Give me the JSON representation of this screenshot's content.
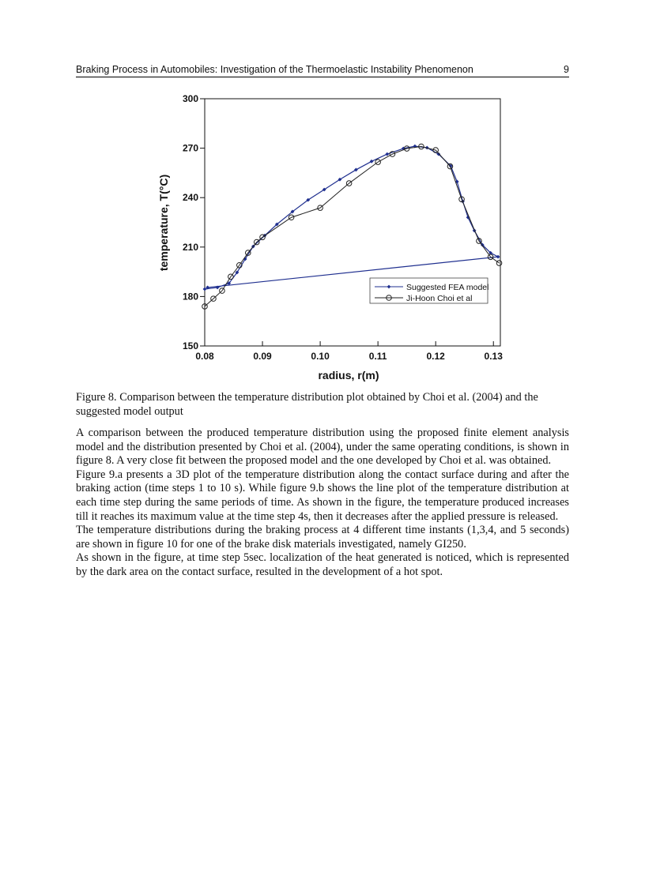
{
  "header": {
    "title": "Braking Process in Automobiles: Investigation of the Thermoelastic Instability Phenomenon",
    "page_number": "9"
  },
  "chart_data": {
    "type": "line",
    "xlabel": "radius, r(m)",
    "ylabel": "temperature, T(°C)",
    "xlim": [
      0.08,
      0.1312
    ],
    "ylim": [
      150,
      300
    ],
    "xticks": [
      0.08,
      0.09,
      {
        "value": 0.1,
        "label": "0.10"
      },
      0.11,
      0.12,
      0.13
    ],
    "yticks": [
      150,
      180,
      210,
      240,
      270,
      300
    ],
    "legend": "lower right",
    "series": [
      {
        "name": "Suggested FEA model",
        "color": "#1f2f8f",
        "marker": "diamond",
        "x": [
          0.08,
          0.0822,
          0.0842,
          0.0856,
          0.087,
          0.0884,
          0.0904,
          0.0925,
          0.0952,
          0.0979,
          0.1007,
          0.1034,
          0.1062,
          0.1089,
          0.1116,
          0.1144,
          0.1164,
          0.1185,
          0.1205,
          0.1226,
          0.1237,
          0.1247,
          0.1256,
          0.1267,
          0.1281,
          0.1295,
          0.1308,
          0.0805
        ],
        "values": [
          184.5,
          185.5,
          188,
          194.6,
          202.7,
          210.4,
          217,
          223.8,
          231.5,
          238.6,
          244.9,
          251,
          256.9,
          262,
          266.4,
          269.8,
          271.2,
          270.3,
          266.4,
          259.2,
          249.7,
          237.7,
          228,
          220,
          211.3,
          206.5,
          204.1,
          185.5
        ]
      },
      {
        "name": "Ji-Hoon Choi et al",
        "color": "#222222",
        "marker": "circle",
        "x": [
          0.08,
          0.0815,
          0.083,
          0.0845,
          0.086,
          0.0875,
          0.089,
          0.09,
          0.095,
          0.1,
          0.105,
          0.11,
          0.1125,
          0.115,
          0.1175,
          0.12,
          0.1225,
          0.1245,
          0.1275,
          0.1295,
          0.131
        ],
        "values": [
          174,
          178.7,
          183.5,
          192,
          199,
          206.5,
          213,
          216,
          228,
          233.8,
          248.7,
          261.6,
          266.4,
          269.8,
          271,
          268.8,
          259,
          239,
          213.7,
          204,
          200.3
        ]
      }
    ]
  },
  "caption": "Figure 8. Comparison between the temperature distribution plot obtained by Choi et al. (2004) and the suggested model output",
  "paragraphs": [
    "A comparison between the produced temperature distribution using the proposed finite element analysis model and the distribution presented by Choi et al. (2004), under the same operating conditions, is shown in figure 8. A very close fit between the proposed model and the one developed by Choi et al. was obtained.",
    "Figure 9.a presents a 3D plot of the temperature distribution along the contact surface during and after the braking action (time steps 1 to 10 s). While figure 9.b shows the line plot of the temperature distribution at each time step during the same periods of time. As shown in the figure, the temperature produced increases till it reaches its maximum value at the time step 4s, then it decreases after the applied pressure is released.",
    "The temperature distributions during the braking process at 4 different time instants (1,3,4, and 5 seconds) are shown in figure 10 for one of the brake disk materials investigated, namely GI250.",
    "As shown in the figure, at time step 5sec. localization of the heat generated is noticed, which is represented by the dark area on the contact surface, resulted in the development of a hot spot."
  ]
}
